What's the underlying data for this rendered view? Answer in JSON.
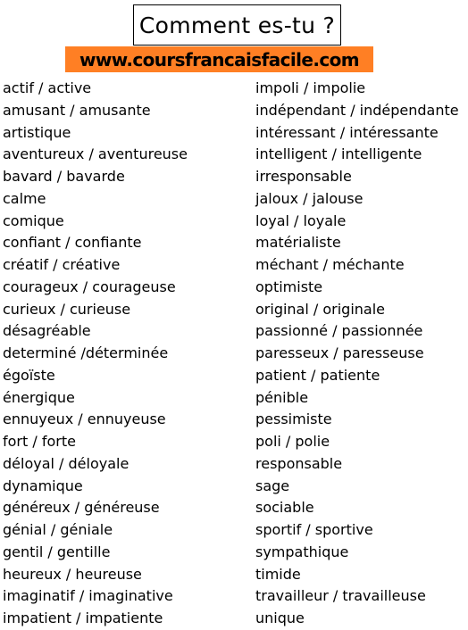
{
  "header": {
    "title": "Comment es-tu ?",
    "website": "www.coursfrancaisfacile.com",
    "banner_color": "#ff7f24"
  },
  "adjectives": {
    "left": [
      "actif / active",
      "amusant / amusante",
      "artistique",
      "aventureux / aventureuse",
      "bavard / bavarde",
      "calme",
      "comique",
      "confiant / confiante",
      "créatif / créative",
      "courageux / courageuse",
      "curieux / curieuse",
      "désagréable",
      "determiné /déterminée",
      "égoïste",
      "énergique",
      "ennuyeux / ennuyeuse",
      "fort / forte",
      "déloyal / déloyale",
      "dynamique",
      "généreux / généreuse",
      "génial / géniale",
      "gentil / gentille",
      "heureux / heureuse",
      "imaginatif / imaginative",
      "impatient / impatiente"
    ],
    "right": [
      "impoli / impolie",
      "indépendant / indépendante",
      "intéressant / intéressante",
      "intelligent / intelligente",
      "irresponsable",
      "jaloux / jalouse",
      "loyal / loyale",
      "matérialiste",
      "méchant / méchante",
      "optimiste",
      "original / originale",
      "passionné / passionnée",
      "paresseux / paresseuse",
      "patient / patiente",
      "pénible",
      "pessimiste",
      "poli / polie",
      "responsable",
      "sage",
      "sociable",
      "sportif / sportive",
      "sympathique",
      "timide",
      "travailleur / travailleuse",
      "unique"
    ]
  }
}
